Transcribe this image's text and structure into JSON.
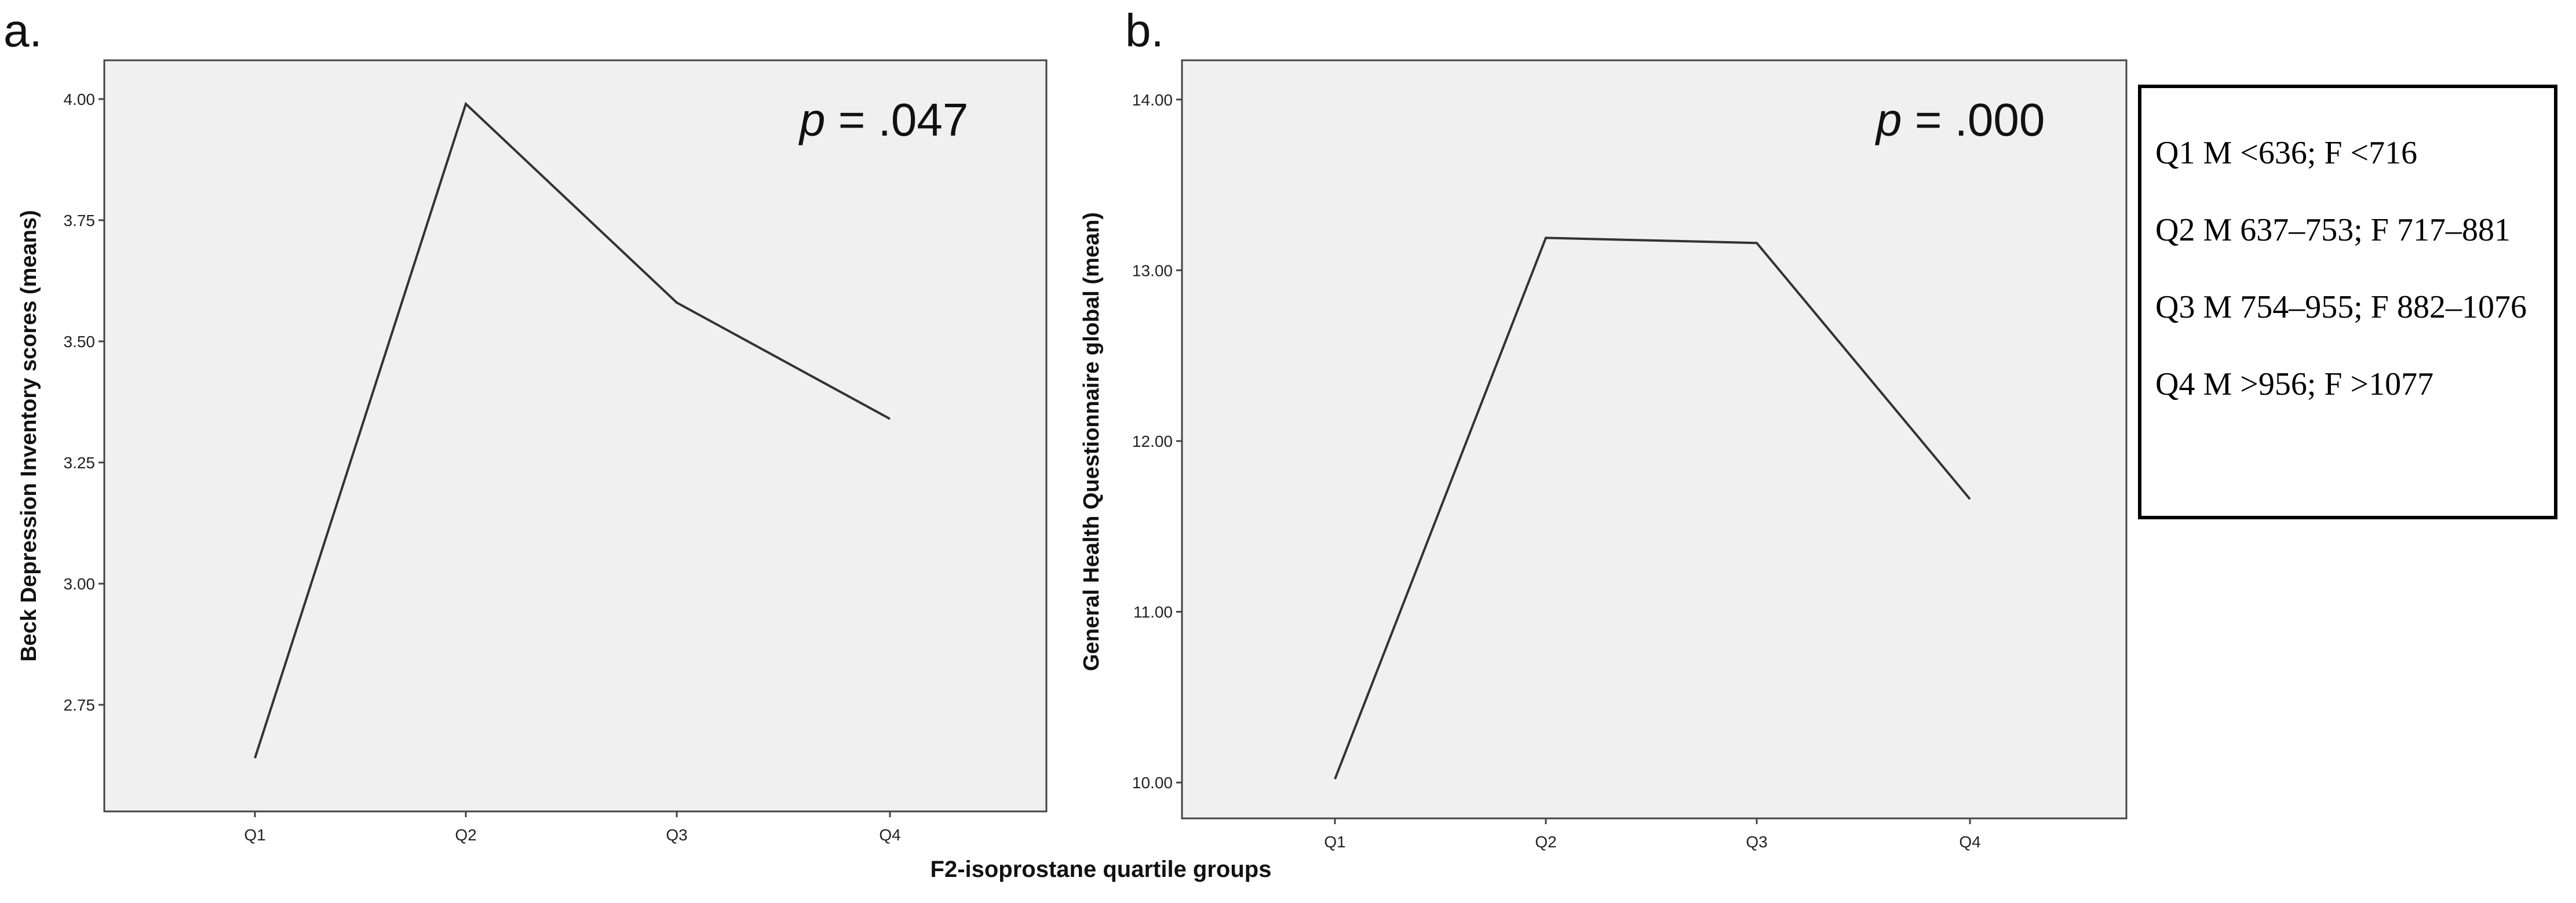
{
  "figure": {
    "shared_xlabel": "F2-isoprostane quartile groups"
  },
  "legend": {
    "lines": [
      "Q1 M <636; F <716",
      "Q2 M 637–753; F 717–881",
      "Q3 M 754–955; F 882–1076",
      "Q4 M >956; F >1077"
    ]
  },
  "chart_data": [
    {
      "type": "line",
      "panel_label": "a.",
      "annotation_italic": "p",
      "annotation_rest": " = .047",
      "ylabel": "Beck Depression Inventory scores (means)",
      "categories": [
        "Q1",
        "Q2",
        "Q3",
        "Q4"
      ],
      "values": [
        2.64,
        3.99,
        3.58,
        3.34
      ],
      "yticks": [
        "2.75",
        "3.00",
        "3.25",
        "3.50",
        "3.75",
        "4.00"
      ],
      "ylim": [
        2.53,
        4.08
      ],
      "grid": false,
      "line_color": "#333333",
      "background": "#f0f0f0"
    },
    {
      "type": "line",
      "panel_label": "b.",
      "annotation_italic": "p",
      "annotation_rest": " = .000",
      "ylabel": "General Health Questionnaire global (mean)",
      "categories": [
        "Q1",
        "Q2",
        "Q3",
        "Q4"
      ],
      "values": [
        10.02,
        13.19,
        13.16,
        11.66
      ],
      "yticks": [
        "10.00",
        "11.00",
        "12.00",
        "13.00",
        "14.00"
      ],
      "ylim": [
        9.79,
        14.23
      ],
      "grid": false,
      "line_color": "#333333",
      "background": "#f0f0f0"
    }
  ]
}
